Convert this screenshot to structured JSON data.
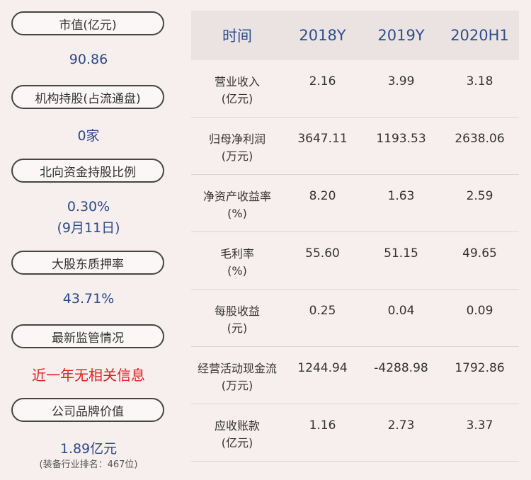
{
  "left": {
    "items": [
      {
        "label": "市值(亿元)",
        "value": "90.86"
      },
      {
        "label": "机构持股(占流通盘)",
        "value": "0家"
      },
      {
        "label": "北向资金持股比例",
        "value": "0.30%",
        "value2": "(9月11日)"
      },
      {
        "label": "大股东质押率",
        "value": "43.71%"
      },
      {
        "label": "最新监管情况",
        "value": "近一年无相关信息"
      },
      {
        "label": "公司品牌价值",
        "value": "1.89亿元",
        "note": "(装备行业排名：467位)"
      }
    ]
  },
  "table": {
    "headers": [
      "时间",
      "2018Y",
      "2019Y",
      "2020H1"
    ],
    "rows": [
      {
        "name": "营业收入",
        "unit": "(亿元)",
        "values": [
          "2.16",
          "3.99",
          "3.18"
        ]
      },
      {
        "name": "归母净利润",
        "unit": "(万元)",
        "values": [
          "3647.11",
          "1193.53",
          "2638.06"
        ]
      },
      {
        "name": "净资产收益率",
        "unit": "(%)",
        "values": [
          "8.20",
          "1.63",
          "2.59"
        ]
      },
      {
        "name": "毛利率",
        "unit": "(%)",
        "values": [
          "55.60",
          "51.15",
          "49.65"
        ]
      },
      {
        "name": "每股收益",
        "unit": "(元)",
        "values": [
          "0.25",
          "0.04",
          "0.09"
        ]
      },
      {
        "name": "经营活动现金流",
        "unit": "(万元)",
        "values": [
          "1244.94",
          "-4288.98",
          "1792.86"
        ]
      },
      {
        "name": "应收账款",
        "unit": "(亿元)",
        "values": [
          "1.16",
          "2.73",
          "3.37"
        ]
      }
    ]
  },
  "colors": {
    "accent": "#2c4f8d",
    "alert": "#e02020",
    "background": "#f7efee",
    "header_bg": "#ebe3e2"
  }
}
